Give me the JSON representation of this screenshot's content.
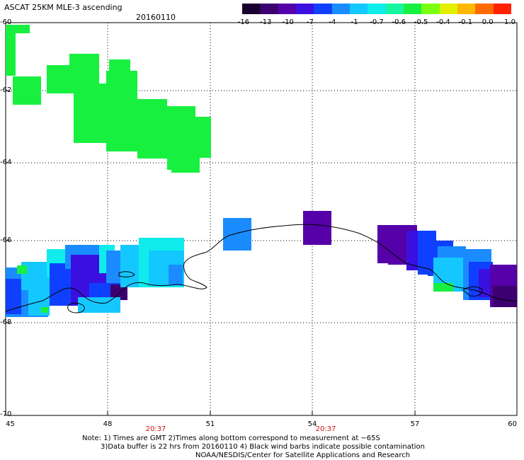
{
  "title": "ASCAT 25KM MLE-3 ascending",
  "date": "20160110",
  "colorbar": {
    "colors": [
      "#1a0030",
      "#3d0070",
      "#5500a8",
      "#3a10e0",
      "#1040ff",
      "#1a8cff",
      "#14c8ff",
      "#10ecec",
      "#18f5a0",
      "#18f040",
      "#7aff10",
      "#e0f000",
      "#ffb800",
      "#ff6a00",
      "#ff2200"
    ],
    "labels": [
      "-16",
      "-13",
      "-10",
      "-7",
      "-4",
      "-1",
      "-0.7",
      "-0.6",
      "-0.5",
      "-0.4",
      "-0.1",
      "0.0",
      "1.0"
    ]
  },
  "axes": {
    "y_labels": [
      "-60",
      "-62",
      "-64",
      "-66",
      "-68",
      "-70"
    ],
    "x_labels": [
      "45",
      "48",
      "51",
      "54",
      "57",
      "60"
    ],
    "time_labels": [
      "20:37",
      "20:37"
    ]
  },
  "notes": {
    "line1": "Note: 1) Times are GMT 2)Times along bottom correspond to measurement at ~65S",
    "line2": "3)Data buffer is 22 hrs from 20160110 4) Black wind barbs indicate possible contamination",
    "line3": "NOAA/NESDIS/Center for Satellite Applications and Research"
  },
  "map": {
    "lon_range": [
      45,
      60
    ],
    "lat_range": [
      -70,
      -60
    ],
    "grid": true,
    "colors": {
      "green": "#18f040",
      "blue": "#1a8cff",
      "purple": "#5500a8",
      "royal": "#1040ff",
      "cyan": "#14c8ff"
    }
  }
}
